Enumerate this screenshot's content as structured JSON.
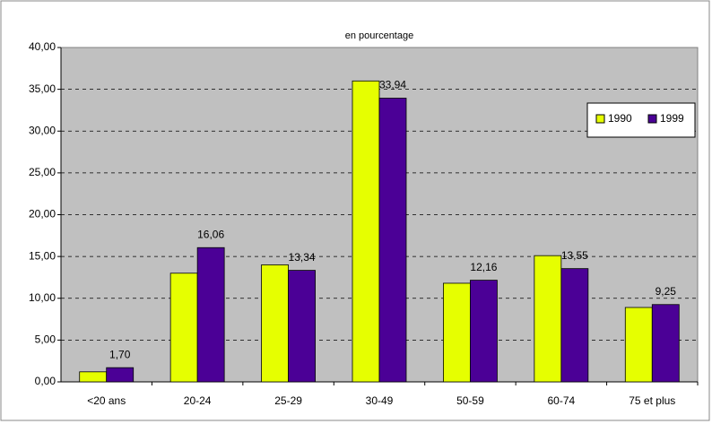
{
  "chart_data": {
    "type": "bar",
    "title": "en pourcentage",
    "categories": [
      "<20 ans",
      "20-24",
      "25-29",
      "30-49",
      "50-59",
      "60-74",
      "75 et plus"
    ],
    "series": [
      {
        "name": "1990",
        "color": "#e6ff00",
        "values": [
          1.2,
          13.0,
          14.0,
          36.0,
          11.8,
          15.1,
          8.9
        ]
      },
      {
        "name": "1999",
        "color": "#4b0096",
        "values": [
          1.7,
          16.06,
          13.34,
          33.94,
          12.16,
          13.55,
          9.25
        ],
        "value_labels": [
          "1,70",
          "16,06",
          "13,34",
          "33,94",
          "12,16",
          "13,55",
          "9,25"
        ]
      }
    ],
    "ylim": [
      0,
      40
    ],
    "yticks": [
      {
        "value": 0,
        "label": "0,00"
      },
      {
        "value": 5,
        "label": "5,00"
      },
      {
        "value": 10,
        "label": "10,00"
      },
      {
        "value": 15,
        "label": "15,00"
      },
      {
        "value": 20,
        "label": "20,00"
      },
      {
        "value": 25,
        "label": "25,00"
      },
      {
        "value": 30,
        "label": "30,00"
      },
      {
        "value": 35,
        "label": "35,00"
      },
      {
        "value": 40,
        "label": "40,00"
      }
    ],
    "grid": true,
    "legend": "right"
  }
}
